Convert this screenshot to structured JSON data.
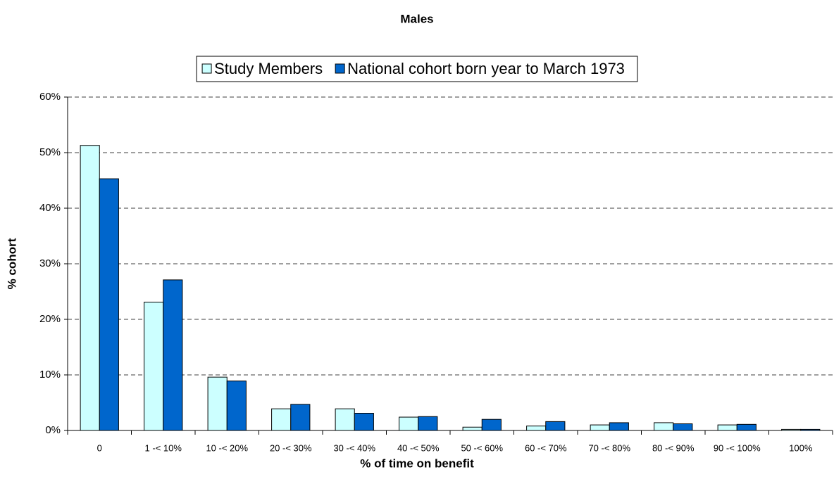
{
  "chart_data": {
    "type": "bar",
    "title": "Males",
    "xlabel": "% of time on benefit",
    "ylabel": "% cohort",
    "categories": [
      "0",
      "1 -< 10%",
      "10 -< 20%",
      "20 -< 30%",
      "30 -< 40%",
      "40 -< 50%",
      "50 -< 60%",
      "60 -< 70%",
      "70 -< 80%",
      "80 -< 90%",
      "90 -< 100%",
      "100%"
    ],
    "series": [
      {
        "name": "Study Members",
        "color": "#ccffff",
        "values": [
          51.3,
          23.1,
          9.6,
          3.9,
          3.9,
          2.4,
          0.6,
          0.8,
          1.0,
          1.4,
          1.0,
          0.2
        ]
      },
      {
        "name": "National cohort born year to March 1973",
        "color": "#0066cc",
        "values": [
          45.3,
          27.1,
          8.9,
          4.7,
          3.1,
          2.5,
          2.0,
          1.6,
          1.4,
          1.2,
          1.1,
          0.2
        ]
      }
    ],
    "ylim": [
      0,
      60
    ],
    "yticks": [
      {
        "value": 0,
        "label": "0%"
      },
      {
        "value": 10,
        "label": "10%"
      },
      {
        "value": 20,
        "label": "20%"
      },
      {
        "value": 30,
        "label": "30%"
      },
      {
        "value": 40,
        "label": "40%"
      },
      {
        "value": 50,
        "label": "50%"
      },
      {
        "value": 60,
        "label": "60%"
      }
    ],
    "grid": true,
    "legend": "top"
  }
}
